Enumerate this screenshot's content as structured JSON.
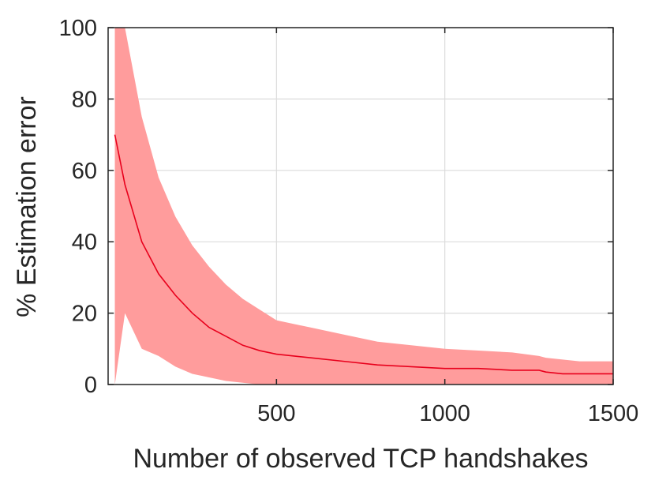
{
  "chart_data": {
    "type": "line",
    "title": "",
    "xlabel": "Number of observed TCP handshakes",
    "ylabel": "% Estimation error",
    "xlim": [
      0,
      1500
    ],
    "ylim": [
      0,
      100
    ],
    "xticks": [
      500,
      1000,
      1500
    ],
    "xtick_labels": [
      "500",
      "1000",
      "1500"
    ],
    "yticks": [
      0,
      20,
      40,
      60,
      80,
      100
    ],
    "ytick_labels": [
      "0",
      "20",
      "40",
      "60",
      "80",
      "100"
    ],
    "grid": true,
    "legend": "none",
    "colors": {
      "mean_line": "#e8001c",
      "error_band": "#ff9c9c",
      "axis": "#262626",
      "grid": "#dcdcdc"
    },
    "series": [
      {
        "kind": "mean_with_error_band",
        "x": [
          20,
          50,
          100,
          150,
          200,
          250,
          300,
          350,
          400,
          450,
          500,
          600,
          700,
          800,
          900,
          1000,
          1100,
          1200,
          1280,
          1300,
          1350,
          1400,
          1500
        ],
        "y": [
          70,
          56,
          40,
          31,
          25,
          20,
          16,
          13.5,
          11,
          9.5,
          8.5,
          7.5,
          6.5,
          5.5,
          5,
          4.5,
          4.5,
          4,
          4,
          3.5,
          3,
          3,
          3
        ],
        "lower": [
          0,
          20,
          10,
          8,
          5,
          3,
          2,
          1,
          0.5,
          0,
          0,
          0,
          0,
          0,
          0,
          0,
          0,
          0,
          0,
          0,
          0,
          0,
          0
        ],
        "upper": [
          100,
          100,
          75,
          58,
          47,
          39,
          33,
          28,
          24,
          21,
          18,
          16,
          14,
          12,
          11,
          10,
          9.5,
          9,
          8,
          7.5,
          7,
          6.5,
          6.5
        ]
      }
    ]
  }
}
